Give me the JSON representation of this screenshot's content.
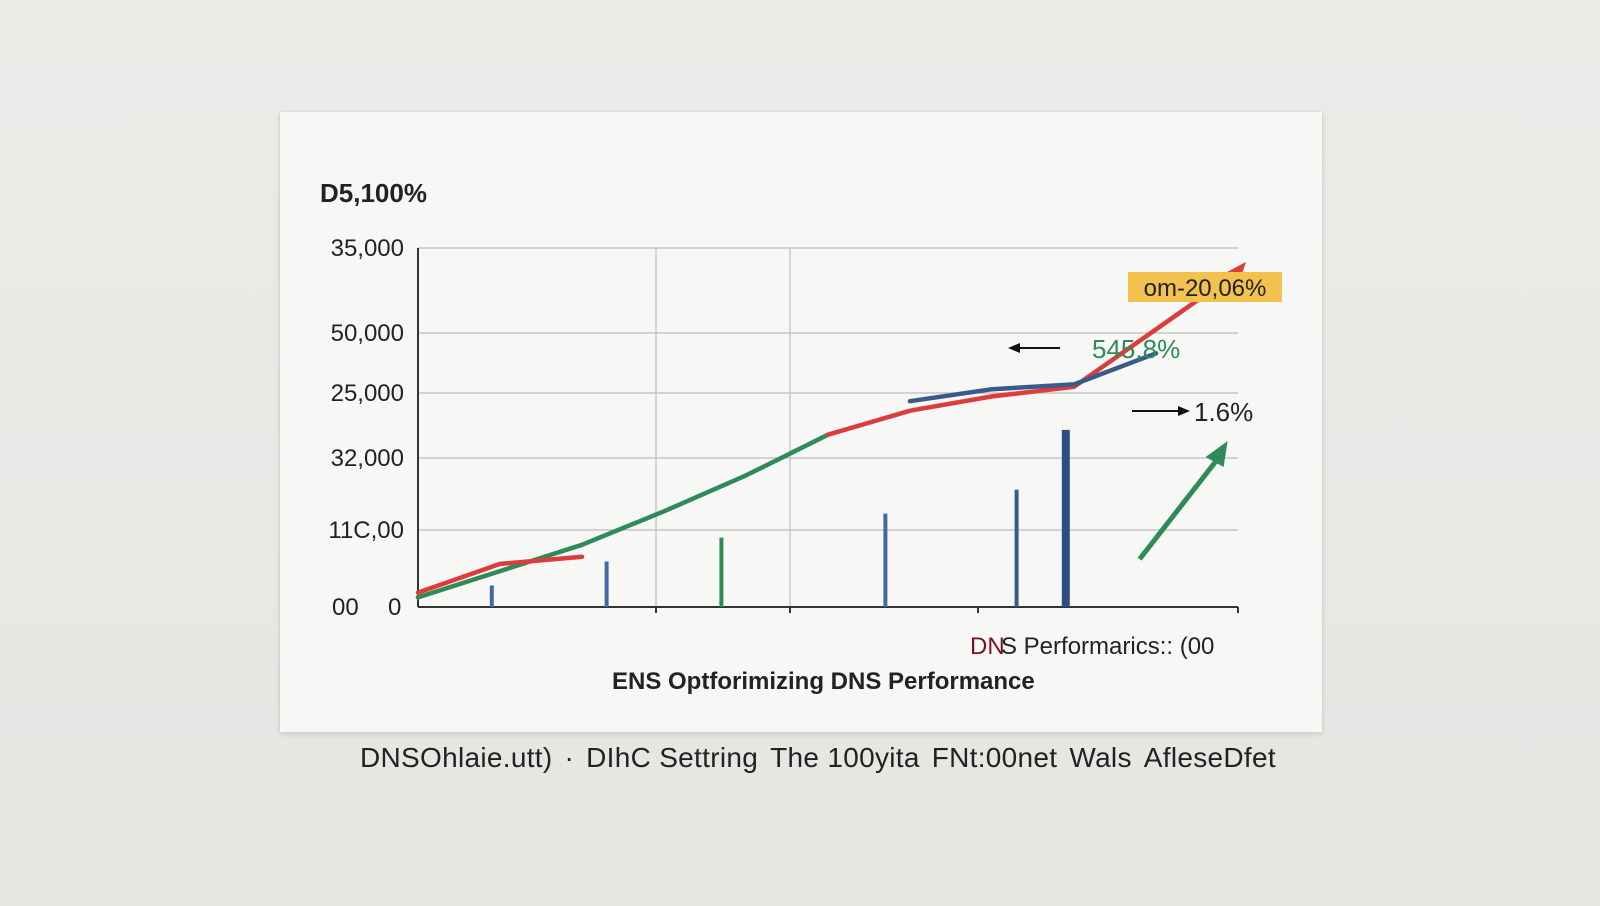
{
  "chart_data": {
    "type": "line",
    "title": "D5,100%",
    "y_tick_labels": [
      "35,000",
      "50,000",
      "25,000",
      "32,000",
      "11C,00",
      "00",
      "0"
    ],
    "x": [
      0,
      1,
      2,
      3,
      4,
      5,
      6,
      7,
      8,
      9,
      10
    ],
    "series": [
      {
        "color": "#2e8b57",
        "values": [
          0.2,
          0.75,
          1.3,
          2.0,
          2.75,
          3.6,
          null,
          null,
          null,
          null,
          null
        ]
      },
      {
        "color": "#dd3c3c",
        "values": [
          0.3,
          0.9,
          1.05,
          null,
          null,
          3.6,
          4.1,
          4.4,
          4.6,
          5.8,
          7.0
        ]
      },
      {
        "color": "#3a5a8c",
        "values": [
          null,
          null,
          null,
          null,
          null,
          null,
          4.3,
          4.55,
          4.65,
          5.3,
          null
        ]
      }
    ],
    "bars": [
      {
        "x": 0.9,
        "value": 0.45,
        "color": "#3f6aa6"
      },
      {
        "x": 2.3,
        "value": 0.95,
        "color": "#3f6aa6"
      },
      {
        "x": 3.7,
        "value": 1.45,
        "color": "#2e8b57"
      },
      {
        "x": 5.7,
        "value": 1.95,
        "color": "#3f6aa6"
      },
      {
        "x": 7.3,
        "value": 2.45,
        "color": "#3a5a8c"
      },
      {
        "x": 7.9,
        "value": 3.7,
        "color": "#2f4e80"
      }
    ],
    "arrow_green": {
      "from": [
        8.8,
        1.0
      ],
      "to": [
        9.8,
        3.3
      ]
    },
    "annotations": {
      "top_right_badge": "om-20,06%",
      "green_label": "545,8%",
      "side_label": "1.6%"
    },
    "legend_note_strong": "DN",
    "legend_note_rest": "S Performarics::  (00",
    "subtitle": "ENS Optforimizing DNS Performance",
    "ylim": [
      0,
      7.5
    ],
    "grid": true
  },
  "caption": {
    "items": [
      "DNSOhlaie.utt)",
      "·",
      "DIhC Settring",
      "The 100yita",
      "FNt:00net",
      "Wals",
      "AfleseDfet"
    ]
  },
  "colors": {
    "axis": "#333333",
    "grid": "#bdbdbd",
    "badge_bg": "#f2c14e"
  }
}
